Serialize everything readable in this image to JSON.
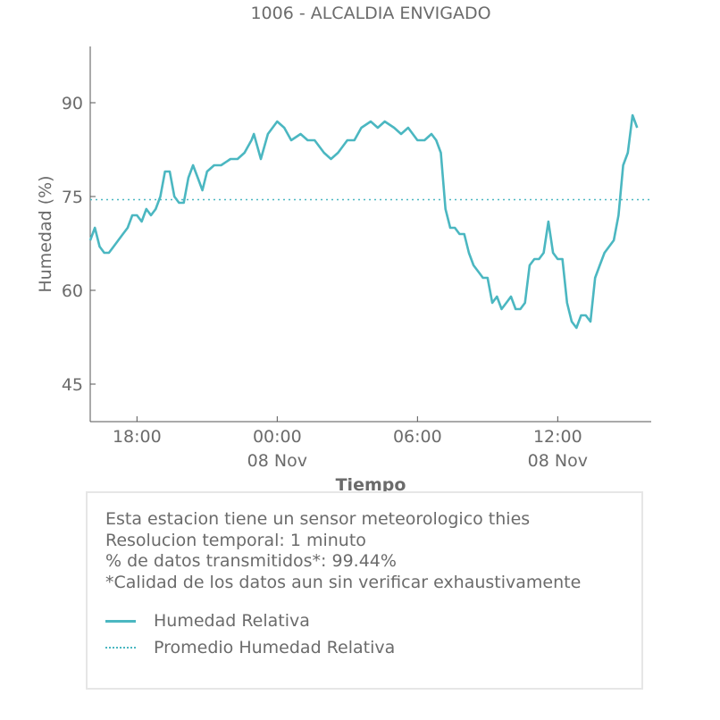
{
  "chart_data": {
    "type": "line",
    "title": "1006 - ALCALDIA ENVIGADO",
    "xlabel": "Tiempo",
    "ylabel": "Humedad (%)",
    "ylim": [
      39,
      99
    ],
    "xlim_hours": [
      16,
      40
    ],
    "yticks": [
      45,
      60,
      75,
      90
    ],
    "xticks": [
      {
        "hour": 18,
        "label": "18:00",
        "sublabel": ""
      },
      {
        "hour": 24,
        "label": "00:00",
        "sublabel": "08 Nov"
      },
      {
        "hour": 30,
        "label": "06:00",
        "sublabel": ""
      },
      {
        "hour": 36,
        "label": "12:00",
        "sublabel": "08 Nov"
      }
    ],
    "series": [
      {
        "name": "Humedad Relativa",
        "color": "#4bb7c1",
        "style": "solid",
        "x_hours": [
          16.0,
          16.2,
          16.4,
          16.6,
          16.8,
          17.0,
          17.2,
          17.4,
          17.6,
          17.8,
          18.0,
          18.2,
          18.4,
          18.6,
          18.8,
          19.0,
          19.2,
          19.4,
          19.6,
          19.8,
          20.0,
          20.2,
          20.4,
          20.6,
          20.8,
          21.0,
          21.3,
          21.6,
          22.0,
          22.3,
          22.6,
          22.9,
          23.0,
          23.3,
          23.6,
          24.0,
          24.3,
          24.6,
          25.0,
          25.3,
          25.6,
          26.0,
          26.3,
          26.6,
          27.0,
          27.3,
          27.6,
          28.0,
          28.3,
          28.6,
          29.0,
          29.3,
          29.6,
          30.0,
          30.3,
          30.6,
          30.8,
          31.0,
          31.2,
          31.4,
          31.6,
          31.8,
          32.0,
          32.2,
          32.4,
          32.6,
          32.8,
          33.0,
          33.2,
          33.4,
          33.6,
          33.8,
          34.0,
          34.2,
          34.4,
          34.6,
          34.8,
          35.0,
          35.2,
          35.4,
          35.6,
          35.8,
          36.0,
          36.2,
          36.4,
          36.6,
          36.8,
          37.0,
          37.2,
          37.4,
          37.6,
          37.8,
          38.0,
          38.2,
          38.4,
          38.6,
          38.8,
          39.0,
          39.2,
          39.4
        ],
        "values": [
          68,
          70,
          67,
          66,
          66,
          67,
          68,
          69,
          70,
          72,
          72,
          71,
          73,
          72,
          73,
          75,
          79,
          79,
          75,
          74,
          74,
          78,
          80,
          78,
          76,
          79,
          80,
          80,
          81,
          81,
          82,
          84,
          85,
          81,
          85,
          87,
          86,
          84,
          85,
          84,
          84,
          82,
          81,
          82,
          84,
          84,
          86,
          87,
          86,
          87,
          86,
          85,
          86,
          84,
          84,
          85,
          84,
          82,
          73,
          70,
          70,
          69,
          69,
          66,
          64,
          63,
          62,
          62,
          58,
          59,
          57,
          58,
          59,
          57,
          57,
          58,
          64,
          65,
          65,
          66,
          71,
          66,
          65,
          65,
          58,
          55,
          54,
          56,
          56,
          55,
          62,
          64,
          66,
          67,
          68,
          72,
          80,
          82,
          88,
          86
        ]
      },
      {
        "name": "Promedio Humedad Relativa",
        "color": "#4bb7c1",
        "style": "dotted",
        "value": 74.5
      }
    ]
  },
  "info": {
    "line1": "Esta estacion tiene un sensor meteorologico thies",
    "line2": "Resolucion temporal: 1 minuto",
    "line3": "% de datos transmitidos*: 99.44%",
    "line4": "*Calidad de los datos aun sin verificar exhaustivamente"
  },
  "legend": {
    "solid_label": "Humedad Relativa",
    "dotted_label": "Promedio Humedad Relativa"
  }
}
